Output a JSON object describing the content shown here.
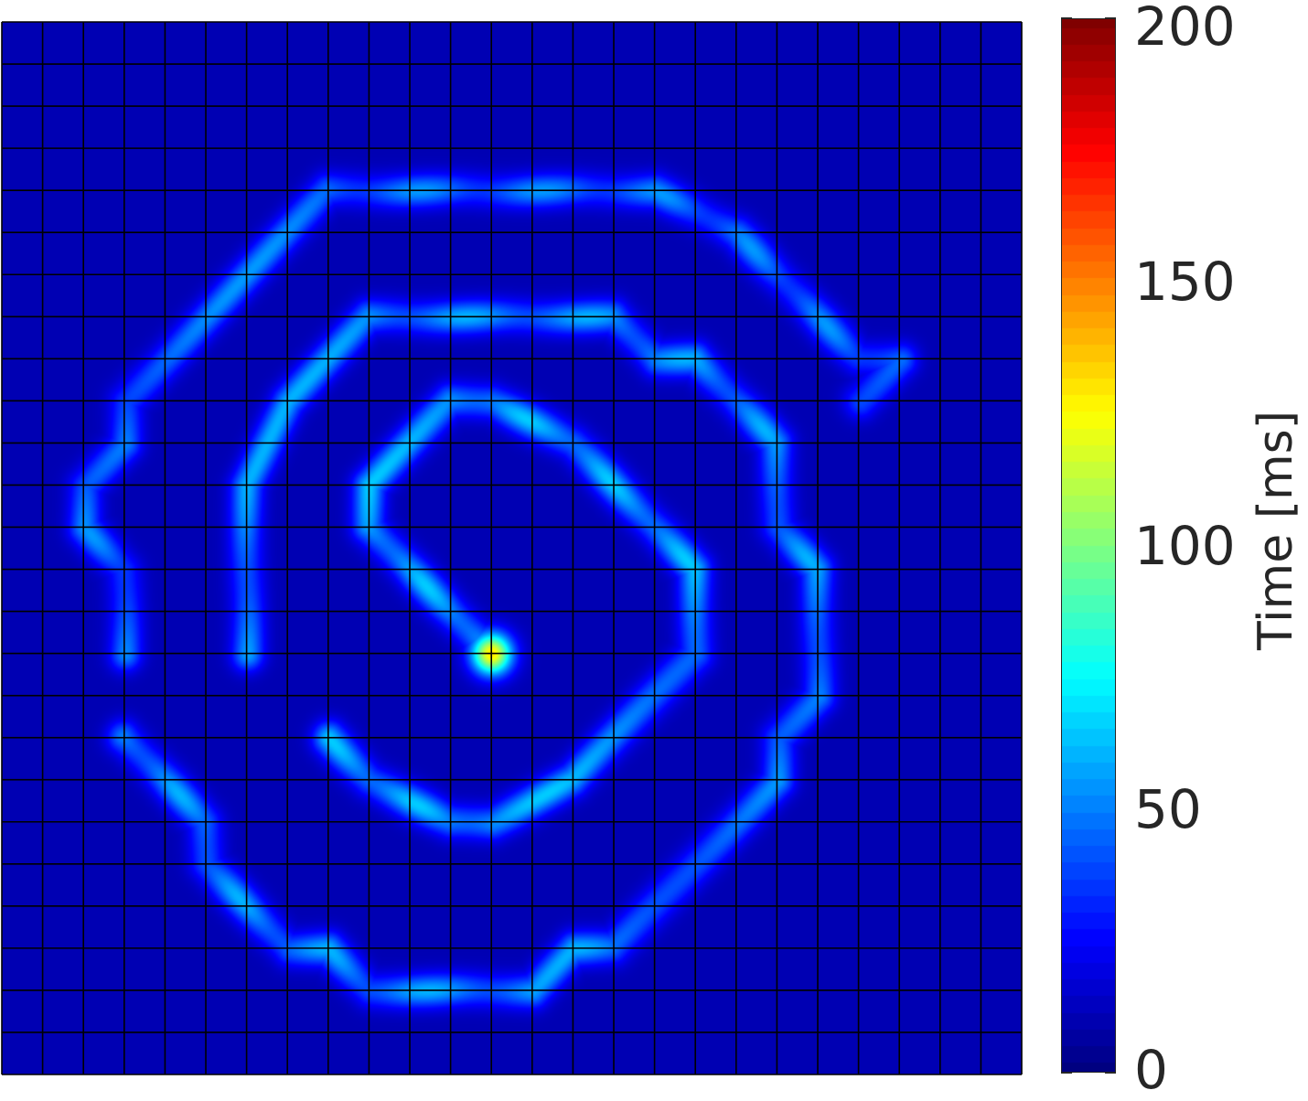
{
  "chart_data": {
    "type": "heatmap",
    "title": "",
    "xlabel": "",
    "ylabel": "",
    "grid": true,
    "grid_rows": 25,
    "grid_cols": 25,
    "colormap": "jet",
    "colorbar": {
      "label": "Time [ms]",
      "range": [
        0,
        200
      ],
      "ticks": [
        0,
        50,
        100,
        150,
        200
      ],
      "tick_labels": [
        "0",
        "50",
        "100",
        "150",
        "200"
      ],
      "position": "right"
    },
    "background_value": 10,
    "description_of_values": "Spiral-shaped band of elevated activation time (~40-80 ms) winding outward from the center; peak ~130 ms at center cell",
    "spiral_bands": [
      {
        "name": "inner",
        "points": [
          [
            12,
            15
          ],
          [
            11,
            14
          ],
          [
            10,
            13
          ],
          [
            9,
            12
          ],
          [
            9,
            11
          ],
          [
            10,
            10
          ],
          [
            11,
            9
          ],
          [
            12,
            9
          ],
          [
            13,
            9.5
          ],
          [
            14,
            10
          ],
          [
            15,
            11
          ],
          [
            16,
            12
          ],
          [
            17,
            13
          ],
          [
            17,
            14
          ],
          [
            17,
            15
          ],
          [
            16,
            16
          ],
          [
            15,
            17
          ],
          [
            14,
            18
          ],
          [
            13,
            18.5
          ],
          [
            12,
            19
          ],
          [
            11,
            19
          ],
          [
            10,
            18.5
          ],
          [
            9,
            18
          ],
          [
            8,
            17
          ]
        ],
        "value": 55
      },
      {
        "name": "middle",
        "points": [
          [
            6,
            15
          ],
          [
            6,
            14
          ],
          [
            6,
            13
          ],
          [
            6,
            12
          ],
          [
            6,
            11
          ],
          [
            7,
            9
          ],
          [
            8,
            8
          ],
          [
            9,
            7
          ],
          [
            10,
            7
          ],
          [
            11,
            7
          ],
          [
            12,
            7
          ],
          [
            13,
            7
          ],
          [
            14,
            7
          ],
          [
            15,
            7
          ],
          [
            16,
            8
          ],
          [
            17,
            8
          ],
          [
            18,
            9
          ],
          [
            19,
            10
          ],
          [
            19,
            11
          ],
          [
            19,
            12
          ],
          [
            20,
            13
          ],
          [
            20,
            14
          ],
          [
            20,
            15
          ],
          [
            20,
            16
          ],
          [
            19,
            17
          ],
          [
            19,
            18
          ],
          [
            18,
            19
          ],
          [
            17,
            20
          ],
          [
            16,
            21
          ],
          [
            15,
            22
          ],
          [
            14,
            22
          ],
          [
            13,
            23
          ],
          [
            12,
            23
          ],
          [
            11,
            23
          ],
          [
            10,
            23
          ],
          [
            9,
            23
          ],
          [
            8,
            22
          ],
          [
            7,
            22
          ],
          [
            6,
            21
          ],
          [
            5,
            20
          ],
          [
            5,
            19
          ],
          [
            4,
            18
          ],
          [
            3,
            17
          ]
        ],
        "value": 50
      },
      {
        "name": "outer",
        "points": [
          [
            3,
            15
          ],
          [
            3,
            14
          ],
          [
            3,
            13
          ],
          [
            2,
            12
          ],
          [
            2,
            11
          ],
          [
            3,
            10
          ],
          [
            3,
            9
          ],
          [
            4,
            8
          ],
          [
            5,
            7
          ],
          [
            6,
            6
          ],
          [
            7,
            5
          ],
          [
            8,
            4
          ],
          [
            9,
            4
          ],
          [
            10,
            4
          ],
          [
            11,
            4
          ],
          [
            12,
            4
          ],
          [
            13,
            4
          ],
          [
            14,
            4
          ],
          [
            15,
            4
          ],
          [
            16,
            4
          ],
          [
            17,
            4.5
          ],
          [
            18,
            5
          ],
          [
            19,
            6
          ],
          [
            20,
            7
          ],
          [
            21,
            8
          ],
          [
            22,
            8
          ],
          [
            21,
            9
          ]
        ],
        "value": 45
      }
    ],
    "peak": {
      "col": 12,
      "row": 15,
      "value": 130
    }
  }
}
